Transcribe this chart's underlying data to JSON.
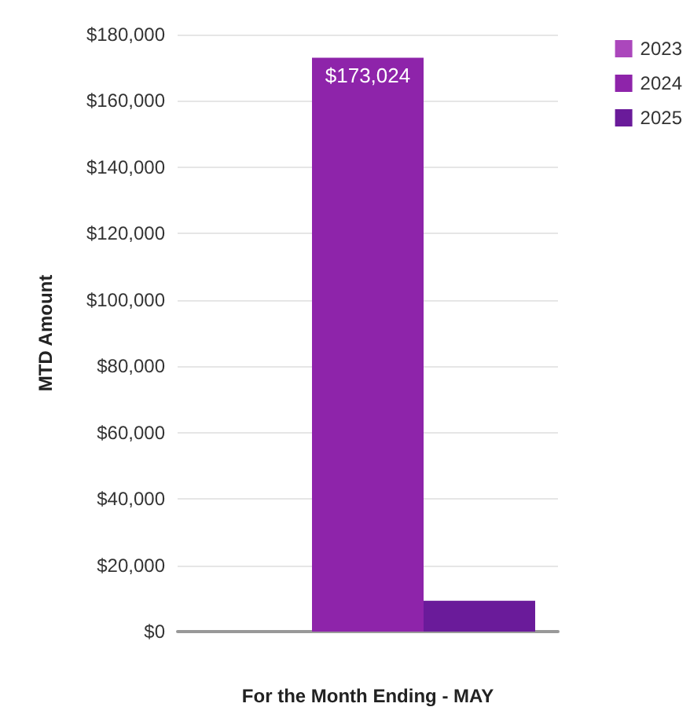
{
  "chart_data": {
    "type": "bar",
    "xlabel": "For the Month Ending - MAY",
    "ylabel": "MTD Amount",
    "categories": [
      null
    ],
    "series": [
      {
        "name": "2023",
        "color": "#ab47bc",
        "values": [
          0
        ]
      },
      {
        "name": "2024",
        "color": "#8e24aa",
        "values": [
          173024
        ],
        "value_labels": [
          "$173,024"
        ]
      },
      {
        "name": "2025",
        "color": "#6a1b9a",
        "values": [
          9300
        ]
      }
    ],
    "ylim": [
      0,
      180000
    ],
    "yticks": [
      {
        "value": 0,
        "label": "$0"
      },
      {
        "value": 20000,
        "label": "$20,000"
      },
      {
        "value": 40000,
        "label": "$40,000"
      },
      {
        "value": 60000,
        "label": "$60,000"
      },
      {
        "value": 80000,
        "label": "$80,000"
      },
      {
        "value": 100000,
        "label": "$100,000"
      },
      {
        "value": 120000,
        "label": "$120,000"
      },
      {
        "value": 140000,
        "label": "$140,000"
      },
      {
        "value": 160000,
        "label": "$160,000"
      },
      {
        "value": 180000,
        "label": "$180,000"
      }
    ],
    "grid": "y",
    "legend": "top right"
  }
}
